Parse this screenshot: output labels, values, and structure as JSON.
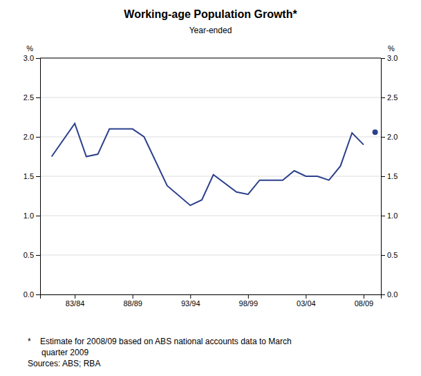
{
  "chart_data": {
    "type": "line",
    "title": "Working-age Population Growth*",
    "subtitle": "Year-ended",
    "ylabel": "%",
    "y2label": "%",
    "annotations": [
      "*    Estimate for 2008/09 based on ABS national accounts data to March",
      "      quarter 2009",
      "Sources: ABS; RBA"
    ],
    "xlim": [
      1980,
      2009.5
    ],
    "xticks": [
      {
        "value": 1983,
        "label": "83/84"
      },
      {
        "value": 1988,
        "label": "88/89"
      },
      {
        "value": 1993,
        "label": "93/94"
      },
      {
        "value": 1998,
        "label": "98/99"
      },
      {
        "value": 2003,
        "label": "03/04"
      },
      {
        "value": 2008,
        "label": "08/09"
      }
    ],
    "ylim": [
      0.0,
      3.0
    ],
    "yticks": [
      {
        "value": 0.0,
        "label": "0.0"
      },
      0.5,
      {
        "value": 1.0,
        "label": "1.0"
      },
      1.5,
      {
        "value": 2.0,
        "label": "2.0"
      },
      2.5,
      {
        "value": 3.0,
        "label": "3.0"
      }
    ],
    "y2lim": [
      0.0,
      3.0
    ],
    "y2ticks": [
      {
        "value": 0.0,
        "label": "0.0"
      },
      0.5,
      {
        "value": 1.0,
        "label": "1.0"
      },
      1.5,
      {
        "value": 2.0,
        "label": "2.0"
      },
      2.5,
      {
        "value": 3.0,
        "label": "3.0"
      }
    ],
    "grid": true,
    "series": [
      {
        "type": "line",
        "color": "#2B3F8C",
        "x": [
          1981,
          1983,
          1984,
          1985,
          1986,
          1988,
          1989,
          1991,
          1993,
          1994,
          1995,
          1997,
          1998,
          1999,
          2001,
          2002,
          2003,
          2004,
          2005,
          2006,
          2007,
          2008
        ],
        "values": [
          1.75,
          2.17,
          1.75,
          1.78,
          2.1,
          2.1,
          2.0,
          1.38,
          1.13,
          1.2,
          1.52,
          1.3,
          1.27,
          1.45,
          1.45,
          1.57,
          1.5,
          1.5,
          1.45,
          1.63,
          2.05,
          1.9
        ]
      },
      {
        "type": "scatter",
        "marker": "circle",
        "color": "#2B3F8C",
        "x": [
          2009
        ],
        "values": [
          2.06
        ]
      }
    ]
  }
}
